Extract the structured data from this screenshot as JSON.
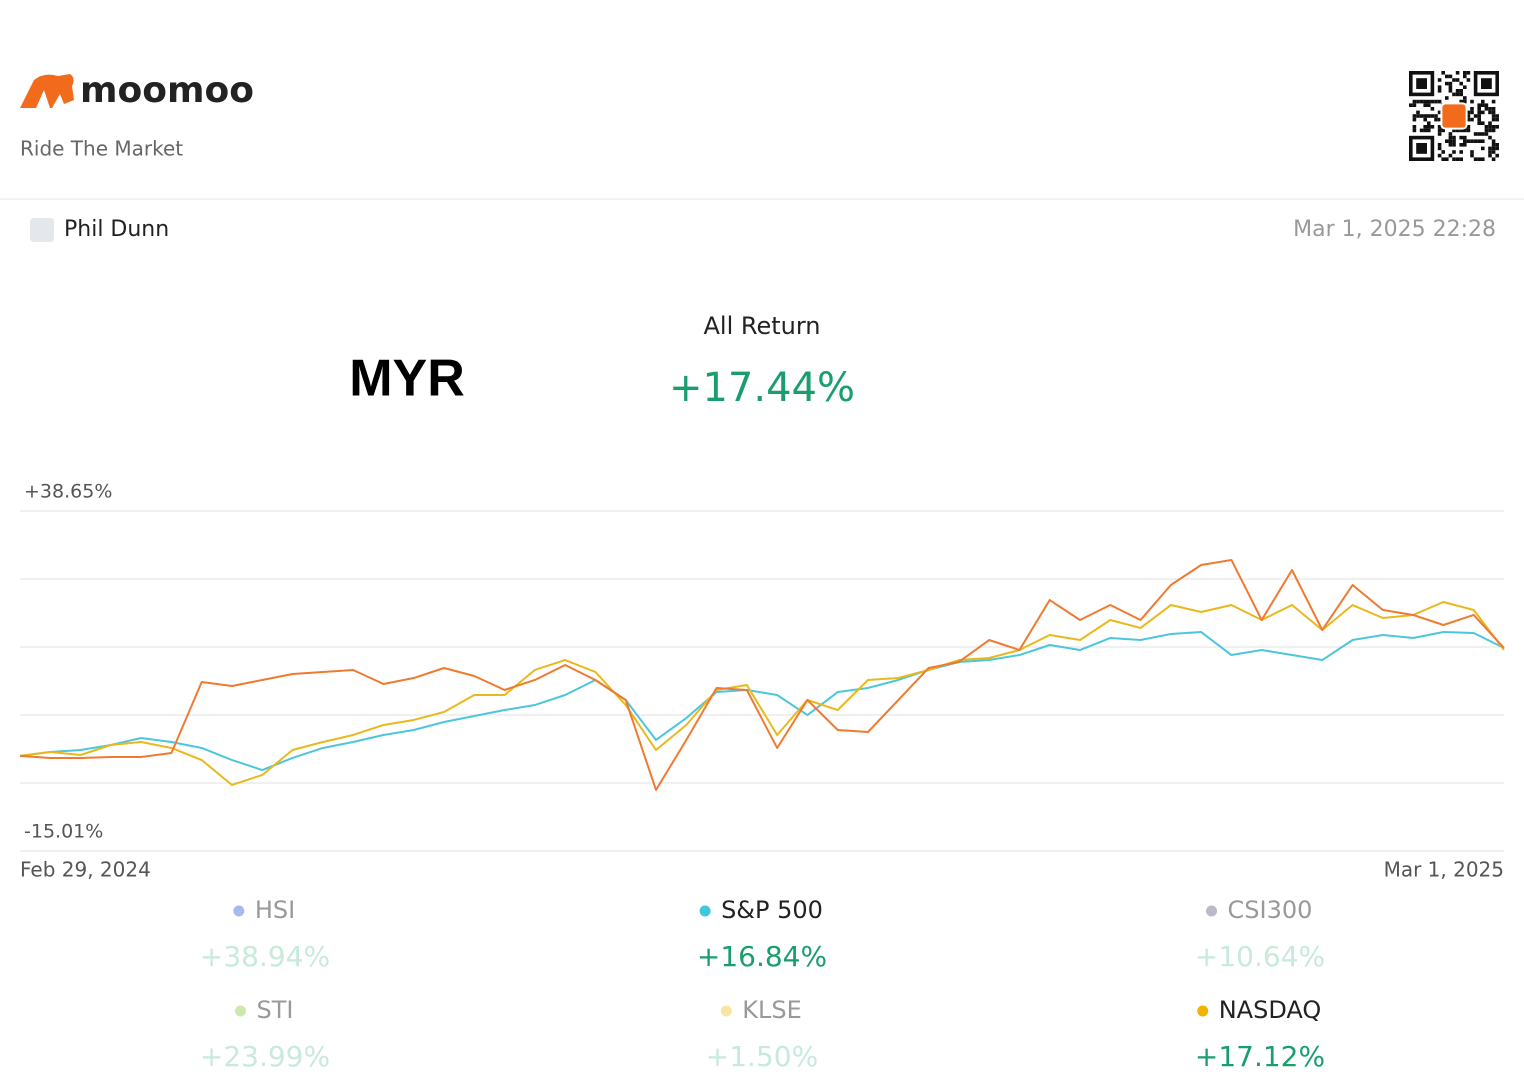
{
  "brand": "moomoo",
  "tagline": "Ride The Market",
  "user": "Phil Dunn",
  "timestamp": "Mar 1, 2025 22:28",
  "currency": "MYR",
  "return_label": "All Return",
  "return_value": "+17.44%",
  "chart_data": {
    "type": "line",
    "categories": [
      "Feb 29, 2024",
      null,
      null,
      null,
      null,
      null,
      null,
      null,
      null,
      null,
      null,
      null,
      null,
      null,
      null,
      null,
      null,
      null,
      null,
      null,
      null,
      null,
      null,
      null,
      null,
      null,
      null,
      null,
      null,
      null,
      null,
      null,
      null,
      null,
      null,
      null,
      null,
      null,
      null,
      null,
      null,
      null,
      null,
      null,
      null,
      null,
      null,
      null,
      null,
      "Mar 1, 2025"
    ],
    "ylim": [
      -15.01,
      38.65
    ],
    "yticks": [
      {
        "value": 38.65,
        "label": "+38.65%"
      },
      27.92,
      17.19,
      6.45,
      -4.28,
      {
        "value": -15.01,
        "label": "-15.01%"
      }
    ],
    "grid": true,
    "series": [
      {
        "name": "S&P 500",
        "color": "#4cc6dc",
        "values": [
          0,
          0.62,
          0.93,
          1.72,
          2.82,
          2.19,
          1.25,
          -0.65,
          -2.23,
          -0.33,
          1.25,
          2.19,
          3.3,
          4.09,
          5.35,
          6.3,
          7.24,
          8.03,
          9.61,
          11.98,
          8.82,
          2.51,
          5.98,
          10.08,
          10.4,
          9.61,
          6.45,
          10.08,
          10.72,
          11.98,
          13.56,
          14.82,
          15.13,
          15.92,
          17.5,
          16.71,
          18.61,
          18.29,
          19.24,
          19.55,
          15.92,
          16.71,
          15.92,
          15.13,
          18.29,
          19.08,
          18.61,
          19.55,
          19.4,
          17.03
        ]
      },
      {
        "name": "NASDAQ",
        "color": "#e9b81c",
        "values": [
          0,
          0.62,
          0.14,
          1.72,
          2.19,
          1.25,
          -0.65,
          -4.59,
          -3.01,
          0.93,
          2.19,
          3.3,
          4.88,
          5.67,
          6.93,
          9.61,
          9.61,
          13.56,
          15.13,
          13.24,
          8.03,
          0.93,
          4.88,
          10.4,
          11.19,
          3.3,
          8.82,
          7.24,
          11.98,
          12.29,
          13.56,
          15.13,
          15.45,
          16.71,
          19.08,
          18.29,
          21.45,
          20.19,
          23.81,
          22.71,
          23.81,
          21.45,
          23.81,
          19.87,
          23.81,
          21.76,
          22.24,
          24.29,
          23.03,
          16.71
        ]
      },
      {
        "color": "#ef7a30",
        "values": [
          0,
          -0.33,
          -0.33,
          -0.17,
          -0.17,
          0.46,
          11.66,
          11.03,
          11.98,
          12.93,
          13.24,
          13.56,
          11.35,
          12.29,
          13.87,
          12.61,
          10.4,
          11.98,
          14.35,
          11.98,
          8.82,
          -5.38,
          2.51,
          10.72,
          10.4,
          1.25,
          8.82,
          4.09,
          3.77,
          8.82,
          13.87,
          14.82,
          18.29,
          16.71,
          24.6,
          21.45,
          23.81,
          21.45,
          26.97,
          30.13,
          30.92,
          21.45,
          29.34,
          19.87,
          26.97,
          23.03,
          22.24,
          20.66,
          22.24,
          17.03
        ]
      }
    ]
  },
  "legend": [
    {
      "name": "HSI",
      "color": "#a9b9ef",
      "return": "+38.94%",
      "active": false
    },
    {
      "name": "S&P 500",
      "color": "#3fc8dc",
      "return": "+16.84%",
      "active": true
    },
    {
      "name": "CSI300",
      "color": "#b9bcc8",
      "return": "+10.64%",
      "active": false
    },
    {
      "name": "STI",
      "color": "#cde9ad",
      "return": "+23.99%",
      "active": false
    },
    {
      "name": "KLSE",
      "color": "#f7e6a2",
      "return": "+1.50%",
      "active": false
    },
    {
      "name": "NASDAQ",
      "color": "#f0b400",
      "return": "+17.12%",
      "active": true
    }
  ]
}
